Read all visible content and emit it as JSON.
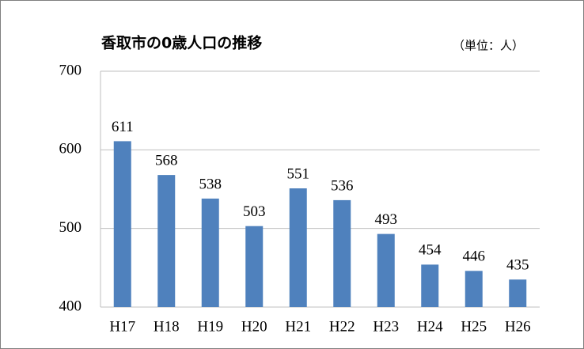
{
  "chart_data": {
    "type": "bar",
    "title": "香取市の0歳人口の推移",
    "annotation": "（単位：人）",
    "categories": [
      "H17",
      "H18",
      "H19",
      "H20",
      "H21",
      "H22",
      "H23",
      "H24",
      "H25",
      "H26"
    ],
    "values": [
      611,
      568,
      538,
      503,
      551,
      536,
      493,
      454,
      446,
      435
    ],
    "color": "#4f81bd",
    "ylim": [
      400,
      700
    ],
    "yticks": [
      400,
      500,
      600,
      700
    ],
    "grid": true,
    "data_labels": true
  }
}
